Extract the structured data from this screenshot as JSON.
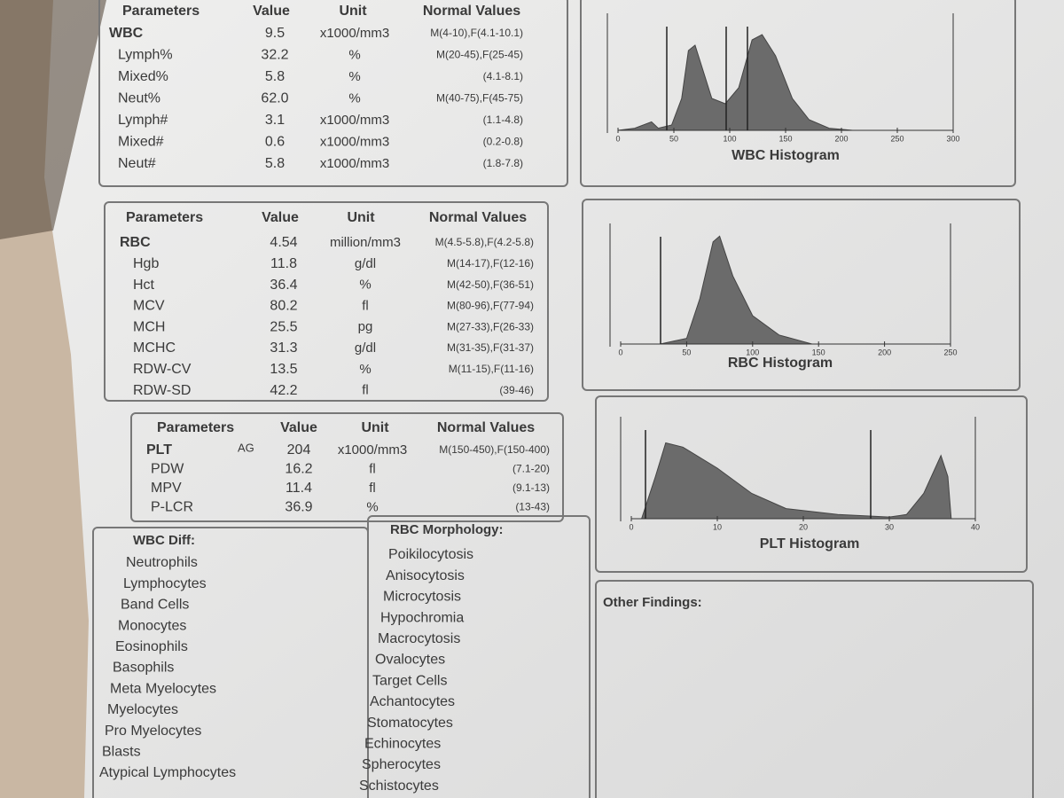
{
  "wbc_table": {
    "header": [
      "Parameters",
      "Value",
      "Unit",
      "Normal Values"
    ],
    "rows": [
      [
        "WBC",
        "9.5",
        "x1000/mm3",
        "M(4-10),F(4.1-10.1)"
      ],
      [
        "Lymph%",
        "32.2",
        "%",
        "M(20-45),F(25-45)"
      ],
      [
        "Mixed%",
        "5.8",
        "%",
        "(4.1-8.1)"
      ],
      [
        "Neut%",
        "62.0",
        "%",
        "M(40-75),F(45-75)"
      ],
      [
        "Lymph#",
        "3.1",
        "x1000/mm3",
        "(1.1-4.8)"
      ],
      [
        "Mixed#",
        "0.6",
        "x1000/mm3",
        "(0.2-0.8)"
      ],
      [
        "Neut#",
        "5.8",
        "x1000/mm3",
        "(1.8-7.8)"
      ]
    ]
  },
  "rbc_table": {
    "header": [
      "Parameters",
      "Value",
      "Unit",
      "Normal Values"
    ],
    "rows": [
      [
        "RBC",
        "4.54",
        "million/mm3",
        "M(4.5-5.8),F(4.2-5.8)"
      ],
      [
        "Hgb",
        "11.8",
        "g/dl",
        "M(14-17),F(12-16)"
      ],
      [
        "Hct",
        "36.4",
        "%",
        "M(42-50),F(36-51)"
      ],
      [
        "MCV",
        "80.2",
        "fl",
        "M(80-96),F(77-94)"
      ],
      [
        "MCH",
        "25.5",
        "pg",
        "M(27-33),F(26-33)"
      ],
      [
        "MCHC",
        "31.3",
        "g/dl",
        "M(31-35),F(31-37)"
      ],
      [
        "RDW-CV",
        "13.5",
        "%",
        "M(11-15),F(11-16)"
      ],
      [
        "RDW-SD",
        "42.2",
        "fl",
        "(39-46)"
      ]
    ]
  },
  "plt_table": {
    "header": [
      "Parameters",
      "Value",
      "Unit",
      "Normal Values"
    ],
    "flag": "AG",
    "rows": [
      [
        "PLT",
        "204",
        "x1000/mm3",
        "M(150-450),F(150-400)"
      ],
      [
        "PDW",
        "16.2",
        "fl",
        "(7.1-20)"
      ],
      [
        "MPV",
        "11.4",
        "fl",
        "(9.1-13)"
      ],
      [
        "P-LCR",
        "36.9",
        "%",
        "(13-43)"
      ]
    ]
  },
  "wbc_histogram": {
    "title": "WBC Histogram",
    "ticks": [
      "0",
      "50",
      "100",
      "150",
      "200",
      "250",
      "300"
    ]
  },
  "rbc_histogram": {
    "title": "RBC Histogram",
    "ticks": [
      "0",
      "50",
      "100",
      "150",
      "200",
      "250"
    ]
  },
  "plt_histogram": {
    "title": "PLT Histogram",
    "ticks": [
      "0",
      "10",
      "20",
      "30",
      "40"
    ]
  },
  "wbc_diff": {
    "title": "WBC Diff:",
    "items": [
      "Neutrophils",
      "Lymphocytes",
      "Band Cells",
      "Monocytes",
      "Eosinophils",
      "Basophils",
      "Meta Myelocytes",
      "Myelocytes",
      "Pro Myelocytes",
      "Blasts",
      "Atypical Lymphocytes"
    ]
  },
  "rbc_morphology": {
    "title": "RBC Morphology:",
    "items": [
      "Poikilocytosis",
      "Anisocytosis",
      "Microcytosis",
      "Hypochromia",
      "Macrocytosis",
      "Ovalocytes",
      "Target Cells",
      "Achantocytes",
      "Stomatocytes",
      "Echinocytes",
      "Spherocytes",
      "Schistocytes"
    ]
  },
  "other_findings": {
    "title": "Other Findings:"
  }
}
